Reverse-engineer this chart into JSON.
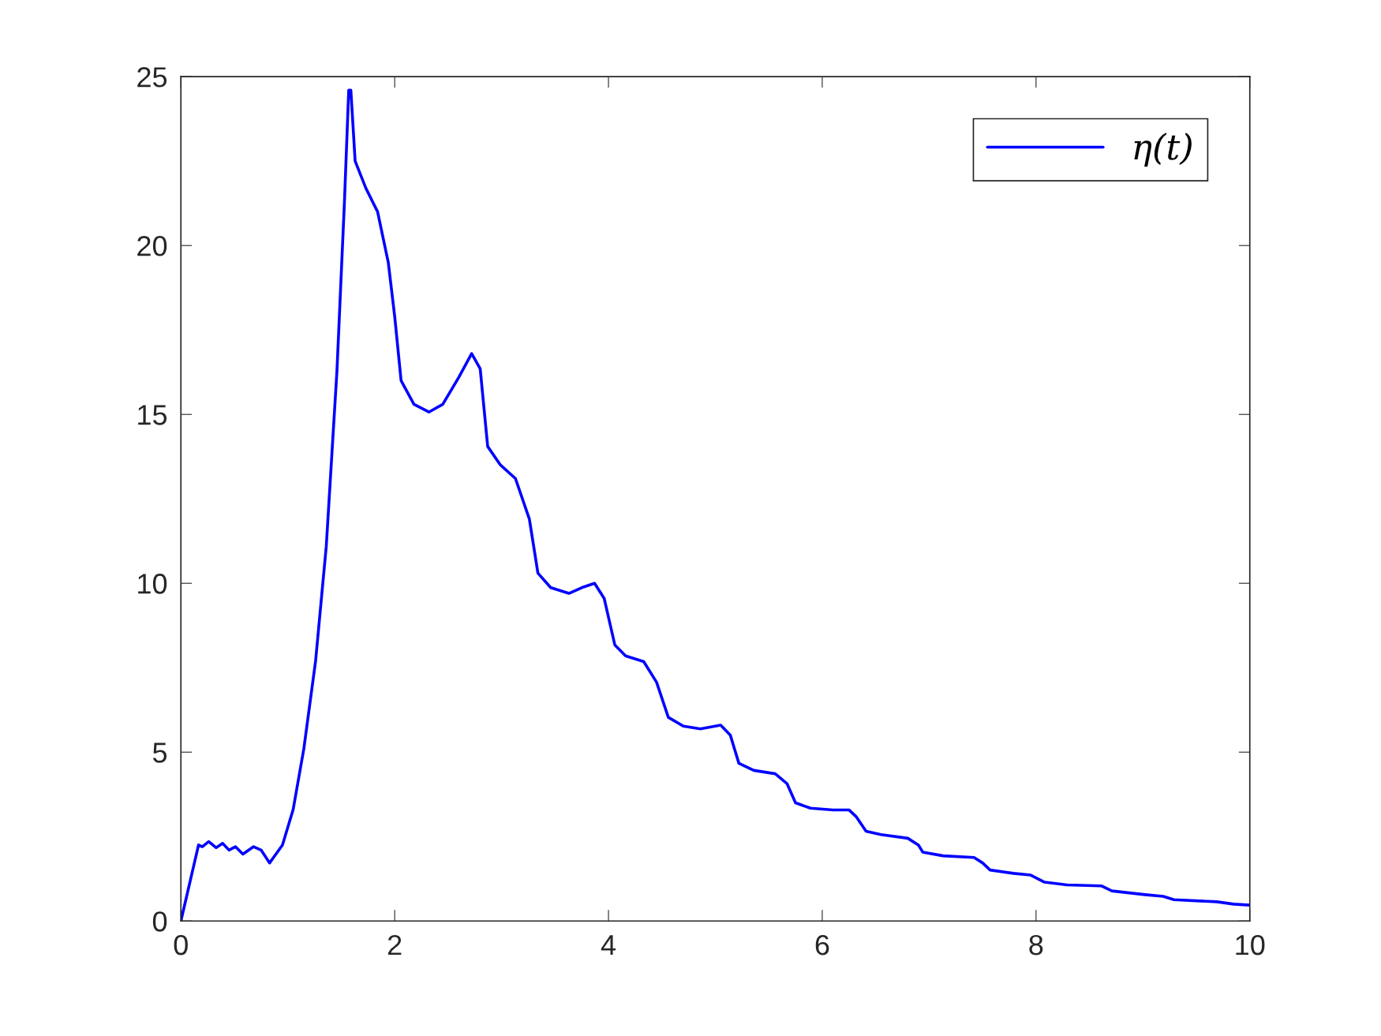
{
  "chart_data": {
    "type": "line",
    "xlim": [
      0,
      10
    ],
    "ylim": [
      0,
      25
    ],
    "xticks": [
      0,
      2,
      4,
      6,
      8,
      10
    ],
    "yticks": [
      0,
      5,
      10,
      15,
      20,
      25
    ],
    "grid": false,
    "legend": "top right",
    "series": [
      {
        "name": "η(t)",
        "color": "#0000ff",
        "x": [
          0,
          0.165,
          0.2,
          0.26,
          0.33,
          0.39,
          0.45,
          0.51,
          0.58,
          0.68,
          0.75,
          0.83,
          0.95,
          1.05,
          1.15,
          1.26,
          1.36,
          1.46,
          1.53,
          1.57,
          1.59,
          1.63,
          1.73,
          1.84,
          1.94,
          2.0,
          2.06,
          2.18,
          2.32,
          2.45,
          2.6,
          2.72,
          2.8,
          2.87,
          2.99,
          3.13,
          3.26,
          3.34,
          3.46,
          3.63,
          3.75,
          3.87,
          3.96,
          4.06,
          4.16,
          4.33,
          4.45,
          4.56,
          4.7,
          4.86,
          5.05,
          5.14,
          5.22,
          5.36,
          5.56,
          5.67,
          5.75,
          5.89,
          6.1,
          6.25,
          6.32,
          6.41,
          6.55,
          6.8,
          6.9,
          6.94,
          7.13,
          7.42,
          7.5,
          7.57,
          7.79,
          7.95,
          8.08,
          8.29,
          8.61,
          8.71,
          9.02,
          9.19,
          9.29,
          9.69,
          9.85,
          10
        ],
        "values": [
          0,
          2.25,
          2.2,
          2.35,
          2.17,
          2.3,
          2.1,
          2.2,
          1.98,
          2.2,
          2.1,
          1.72,
          2.25,
          3.3,
          5.1,
          7.7,
          11.1,
          16.3,
          21.3,
          24.6,
          24.6,
          22.5,
          21.7,
          21.0,
          19.5,
          17.9,
          16.0,
          15.3,
          15.07,
          15.3,
          16.1,
          16.8,
          16.35,
          14.05,
          13.5,
          13.1,
          11.9,
          10.3,
          9.87,
          9.7,
          9.87,
          10.0,
          9.55,
          8.17,
          7.85,
          7.68,
          7.07,
          6.03,
          5.77,
          5.69,
          5.8,
          5.5,
          4.67,
          4.46,
          4.36,
          4.07,
          3.5,
          3.34,
          3.29,
          3.29,
          3.08,
          2.66,
          2.56,
          2.45,
          2.25,
          2.04,
          1.93,
          1.88,
          1.72,
          1.51,
          1.41,
          1.36,
          1.15,
          1.07,
          1.04,
          0.89,
          0.78,
          0.73,
          0.63,
          0.57,
          0.5,
          0.47
        ]
      }
    ]
  }
}
